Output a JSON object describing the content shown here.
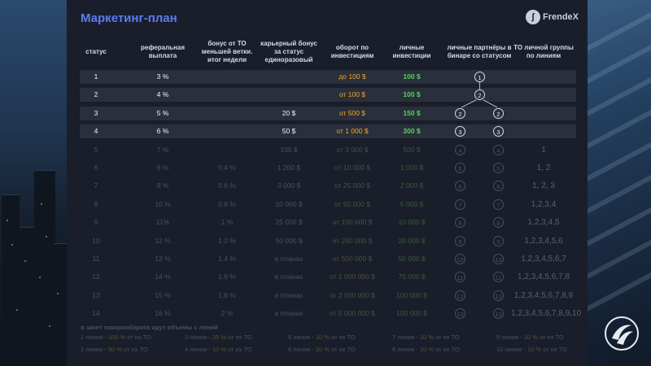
{
  "title": "Маркетинг-план",
  "brand": {
    "name": "FrendeX",
    "icon": "frendex-logo-icon"
  },
  "headers": [
    "статус",
    "реферальная выплата",
    "бонус от ТО меньшей ветки. итог недели",
    "карьерный бонус за статус единоразовый",
    "оборот по инвестициям",
    "личные инвестиции",
    "личные партнёры в бинаре со статусом",
    "ТО личной группы по линиям"
  ],
  "rows": [
    {
      "status": "1",
      "ref": "3 %",
      "bonus": "",
      "career": "",
      "turnover": "до 100 $",
      "invest": "100 $",
      "partners_left": "",
      "partners_center": "1",
      "partners_right": "",
      "group": "",
      "state": "bright"
    },
    {
      "status": "2",
      "ref": "4 %",
      "bonus": "",
      "career": "",
      "turnover": "от 100 $",
      "invest": "100 $",
      "partners_left": "",
      "partners_center": "2",
      "partners_right": "",
      "group": "",
      "state": "bright"
    },
    {
      "status": "3",
      "ref": "5 %",
      "bonus": "",
      "career": "20 $",
      "turnover": "от 500 $",
      "invest": "150 $",
      "partners_left": "2",
      "partners_center": "",
      "partners_right": "2",
      "group": "",
      "state": "bright"
    },
    {
      "status": "4",
      "ref": "6 %",
      "bonus": "",
      "career": "50 $",
      "turnover": "от 1 000 $",
      "invest": "300 $",
      "partners_left": "3",
      "partners_center": "",
      "partners_right": "3",
      "group": "",
      "state": "bright"
    },
    {
      "status": "5",
      "ref": "7 %",
      "bonus": "",
      "career": "100 $",
      "turnover": "от 3 000 $",
      "invest": "500 $",
      "partners_left": "4",
      "partners_center": "",
      "partners_right": "4",
      "group": "1",
      "state": "faded"
    },
    {
      "status": "6",
      "ref": "8 %",
      "bonus": "0.4 %",
      "career": "1 200 $",
      "turnover": "от 10 000 $",
      "invest": "1 000 $",
      "partners_left": "5",
      "partners_center": "",
      "partners_right": "5",
      "group": "1, 2",
      "state": "faded"
    },
    {
      "status": "7",
      "ref": "9 %",
      "bonus": "0.6 %",
      "career": "3 000 $",
      "turnover": "от 25 000 $",
      "invest": "2 000 $",
      "partners_left": "6",
      "partners_center": "",
      "partners_right": "6",
      "group": "1, 2, 3",
      "state": "faded"
    },
    {
      "status": "8",
      "ref": "10 %",
      "bonus": "0.8 %",
      "career": "10 000 $",
      "turnover": "от 50 000 $",
      "invest": "5 000 $",
      "partners_left": "7",
      "partners_center": "",
      "partners_right": "7",
      "group": "1,2,3,4",
      "state": "faded"
    },
    {
      "status": "9",
      "ref": "11%",
      "bonus": "1 %",
      "career": "25 000 $",
      "turnover": "от 100 000 $",
      "invest": "10 000 $",
      "partners_left": "8",
      "partners_center": "",
      "partners_right": "8",
      "group": "1,2,3,4,5",
      "state": "faded"
    },
    {
      "status": "10",
      "ref": "12 %",
      "bonus": "1.2 %",
      "career": "50 000 $",
      "turnover": "от 250 000 $",
      "invest": "20 000 $",
      "partners_left": "9",
      "partners_center": "",
      "partners_right": "9",
      "group": "1,2,3,4,5,6",
      "state": "faded"
    },
    {
      "status": "11",
      "ref": "13 %",
      "bonus": "1.4 %",
      "career": "в планах",
      "turnover": "от 500 000 $",
      "invest": "50 000 $",
      "partners_left": "10",
      "partners_center": "",
      "partners_right": "10",
      "group": "1,2,3,4,5,6,7",
      "state": "faded"
    },
    {
      "status": "12",
      "ref": "14 %",
      "bonus": "1.6 %",
      "career": "в планах",
      "turnover": "от 1 000 000 $",
      "invest": "75 000 $",
      "partners_left": "11",
      "partners_center": "",
      "partners_right": "11",
      "group": "1,2,3,4,5,6,7,8",
      "state": "faded"
    },
    {
      "status": "13",
      "ref": "15 %",
      "bonus": "1.8 %",
      "career": "в планах",
      "turnover": "от 2 500 000 $",
      "invest": "100 000 $",
      "partners_left": "12",
      "partners_center": "",
      "partners_right": "12",
      "group": "1,2,3,4,5,6,7,8,9",
      "state": "faded"
    },
    {
      "status": "14",
      "ref": "16 %",
      "bonus": "2 %",
      "career": "в планах",
      "turnover": "от 5 000 000 $",
      "invest": "150 000 $",
      "partners_left": "13",
      "partners_center": "",
      "partners_right": "13",
      "group": "1,2,3,4,5,6,7,8,9,10",
      "state": "faded"
    }
  ],
  "footer": {
    "title": "в зачет товарооборота идут объемы с линий",
    "items": [
      {
        "prefix": "1 линия - ",
        "pct": "100 %",
        "suffix": " от их ТО"
      },
      {
        "prefix": "2 линия - ",
        "pct": "50 %",
        "suffix": " от их ТО"
      },
      {
        "prefix": "3 линия - ",
        "pct": "25 %",
        "suffix": " от их ТО"
      },
      {
        "prefix": "4 линия - ",
        "pct": "10 %",
        "suffix": " от их ТО"
      },
      {
        "prefix": "5 линия - ",
        "pct": "10 %",
        "suffix": " от их ТО"
      },
      {
        "prefix": "6 линия - ",
        "pct": "10 %",
        "suffix": " от их ТО"
      },
      {
        "prefix": "7 линия - ",
        "pct": "10 %",
        "suffix": " от их ТО"
      },
      {
        "prefix": "8 линия - ",
        "pct": "10 %",
        "suffix": " от их ТО"
      },
      {
        "prefix": "9 линия - ",
        "pct": "10 %",
        "suffix": " от их ТО"
      },
      {
        "prefix": "10 линия - ",
        "pct": "10 %",
        "suffix": " от их ТО"
      }
    ]
  },
  "bottom_logo": "frendex-swirl-logo-icon"
}
